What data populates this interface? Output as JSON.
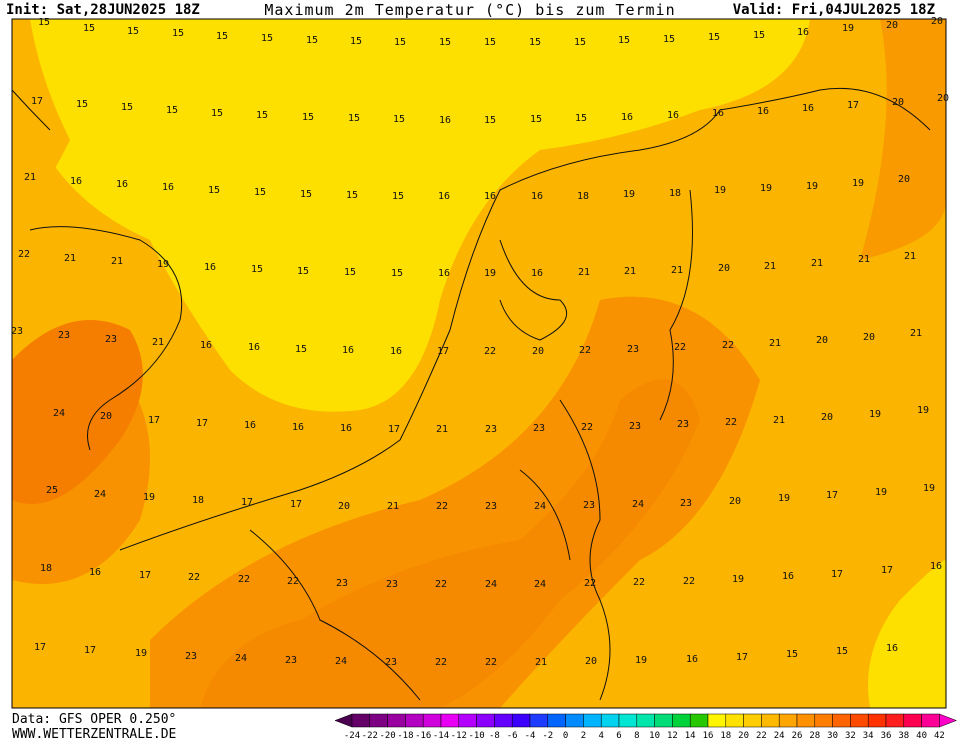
{
  "header": {
    "init": "Init: Sat,28JUN2025 18Z",
    "title": "Maximum 2m Temperatur (°C) bis zum Termin",
    "valid": "Valid: Fri,04JUL2025 18Z"
  },
  "map": {
    "rows": [
      [
        15,
        15,
        15,
        15,
        15,
        15,
        15,
        15,
        15,
        15,
        15,
        15,
        15,
        15,
        15,
        15,
        15,
        16,
        19,
        20,
        20
      ],
      [
        17,
        15,
        15,
        15,
        15,
        15,
        15,
        15,
        15,
        16,
        15,
        15,
        15,
        16,
        16,
        16,
        16,
        16,
        17,
        20,
        20
      ],
      [
        21,
        16,
        16,
        16,
        15,
        15,
        15,
        15,
        15,
        16,
        16,
        16,
        18,
        19,
        18,
        19,
        19,
        19,
        19,
        20
      ],
      [
        22,
        21,
        21,
        19,
        16,
        15,
        15,
        15,
        15,
        16,
        19,
        16,
        21,
        21,
        21,
        20,
        21,
        21,
        21,
        21
      ],
      [
        23,
        23,
        23,
        21,
        16,
        16,
        15,
        16,
        16,
        17,
        22,
        20,
        22,
        23,
        22,
        22,
        21,
        20,
        20,
        21
      ],
      [
        24,
        20,
        17,
        17,
        16,
        16,
        16,
        17,
        21,
        23,
        23,
        22,
        23,
        23,
        22,
        21,
        20,
        19,
        19
      ],
      [
        25,
        24,
        19,
        18,
        17,
        17,
        20,
        21,
        22,
        23,
        24,
        23,
        24,
        23,
        20,
        19,
        17,
        19,
        19
      ],
      [
        18,
        16,
        17,
        22,
        22,
        22,
        23,
        23,
        22,
        24,
        24,
        22,
        22,
        22,
        19,
        16,
        17,
        17,
        16
      ],
      [
        17,
        17,
        19,
        23,
        24,
        23,
        24,
        23,
        22,
        22,
        21,
        20,
        19,
        16,
        17,
        15,
        15,
        16
      ]
    ]
  },
  "colorbar": {
    "ticks": [
      -24,
      -22,
      -20,
      -18,
      -16,
      -14,
      -12,
      -10,
      -8,
      -6,
      -4,
      -2,
      0,
      2,
      4,
      6,
      8,
      10,
      12,
      14,
      16,
      18,
      20,
      22,
      24,
      26,
      28,
      30,
      32,
      34,
      36,
      38,
      40,
      42
    ]
  },
  "footer": {
    "data": "Data: GFS OPER 0.250°",
    "site": "WWW.WETTERZENTRALE.DE"
  }
}
